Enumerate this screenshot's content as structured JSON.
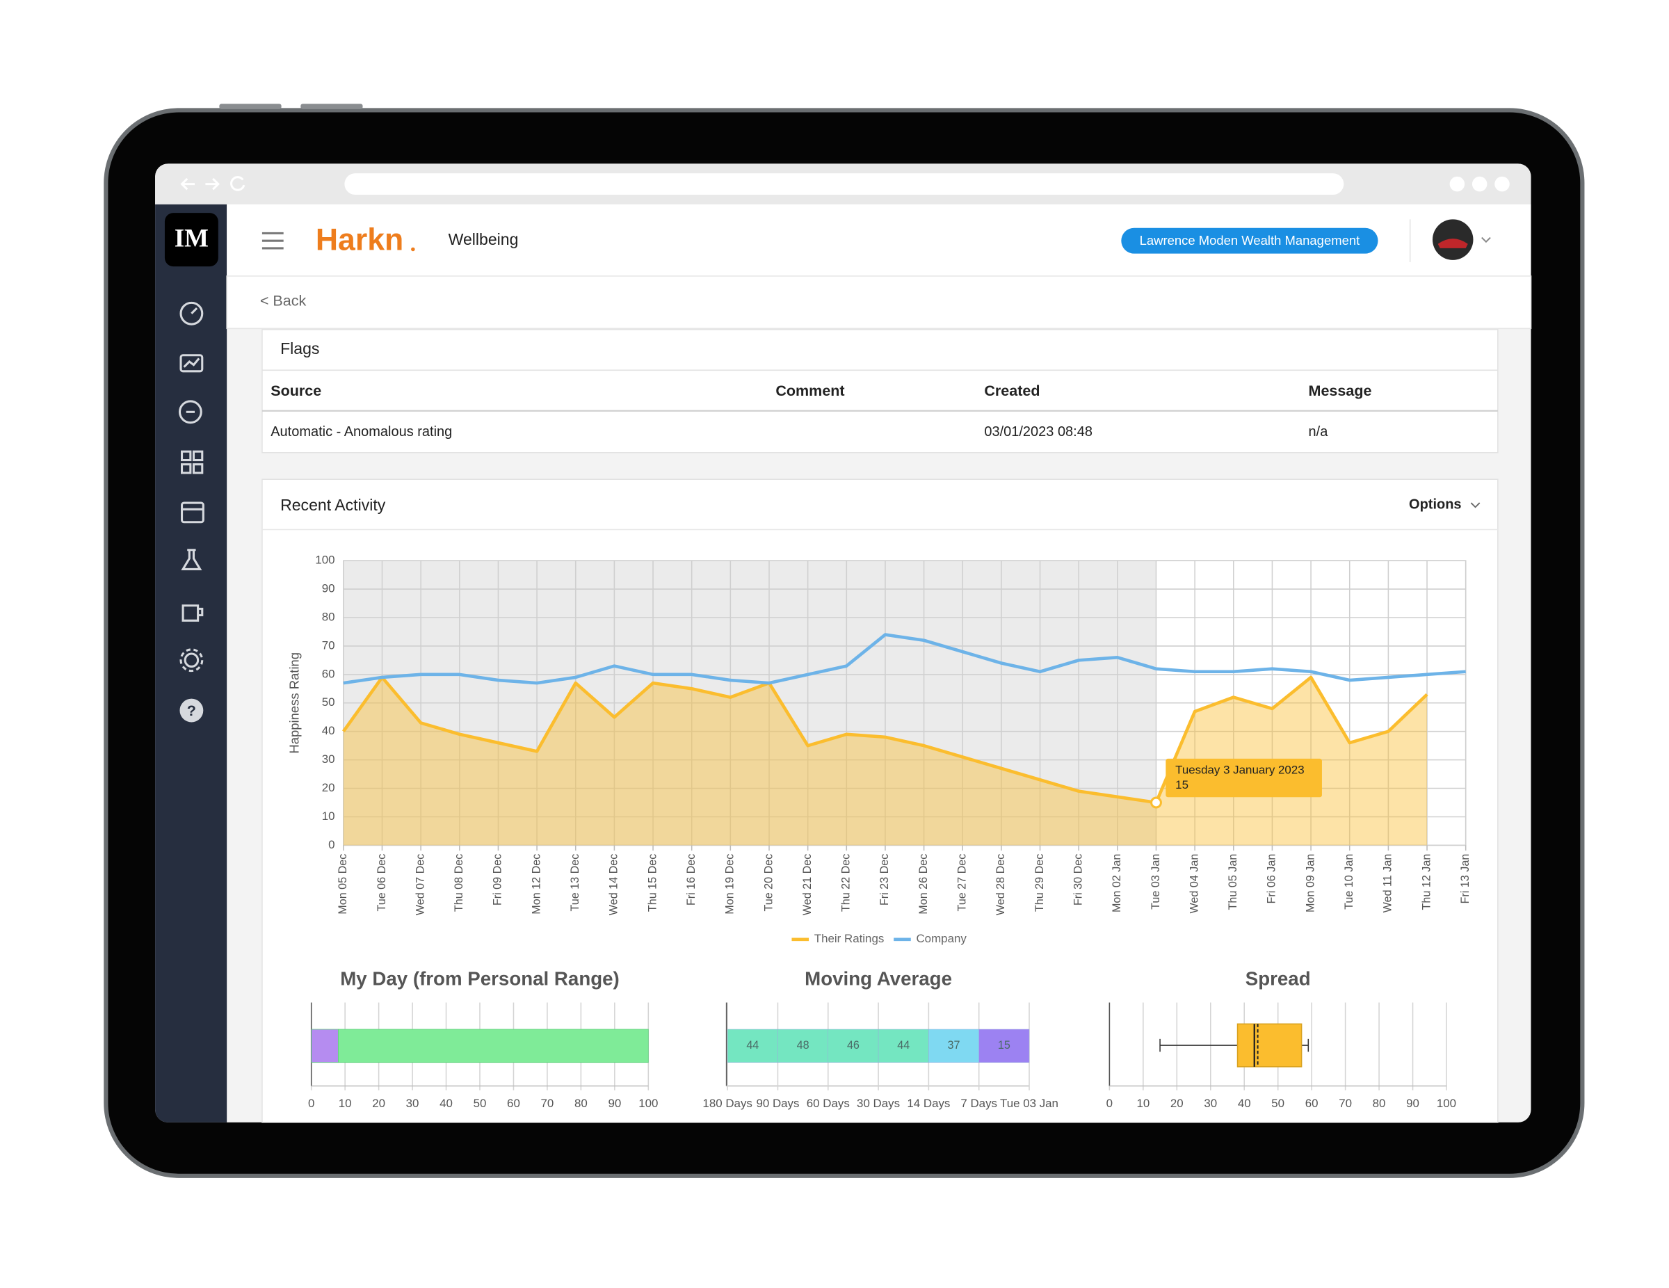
{
  "sidebar": {
    "logo": "IM"
  },
  "header": {
    "brand": "Harkn",
    "page": "Wellbeing",
    "organisation": "Lawrence Moden Wealth Management"
  },
  "back": "< Back",
  "flags": {
    "title": "Flags",
    "columns": [
      "Source",
      "Comment",
      "Created",
      "Message"
    ],
    "rows": [
      {
        "source": "Automatic - Anomalous rating",
        "created": "03/01/2023 08:48",
        "message": "n/a"
      }
    ]
  },
  "recent_activity": {
    "title": "Recent Activity",
    "options": "Options"
  },
  "chart_data": [
    {
      "type": "line",
      "ylabel": "Happiness Rating",
      "categories": [
        "Mon 05 Dec",
        "Tue 06 Dec",
        "Wed 07 Dec",
        "Thu 08 Dec",
        "Fri 09 Dec",
        "Mon 12 Dec",
        "Tue 13 Dec",
        "Wed 14 Dec",
        "Thu 15 Dec",
        "Fri 16 Dec",
        "Mon 19 Dec",
        "Tue 20 Dec",
        "Wed 21 Dec",
        "Thu 22 Dec",
        "Fri 23 Dec",
        "Mon 26 Dec",
        "Tue 27 Dec",
        "Wed 28 Dec",
        "Thu 29 Dec",
        "Fri 30 Dec",
        "Mon 02 Jan",
        "Tue 03 Jan",
        "Wed 04 Jan",
        "Thu 05 Jan",
        "Fri 06 Jan",
        "Mon 09 Jan",
        "Tue 10 Jan",
        "Wed 11 Jan",
        "Thu 12 Jan",
        "Fri 13 Jan"
      ],
      "series": [
        {
          "name": "Their Ratings",
          "color": "#fbbd2e",
          "fill": true,
          "values": [
            40,
            59,
            43,
            39,
            36,
            33,
            57,
            45,
            57,
            55,
            52,
            57,
            35,
            39,
            38,
            35,
            31,
            27,
            23,
            19,
            17,
            15,
            47,
            52,
            48,
            59,
            36,
            40,
            53,
            null
          ]
        },
        {
          "name": "Company",
          "color": "#6db3e8",
          "fill": false,
          "values": [
            57,
            59,
            60,
            60,
            58,
            57,
            59,
            63,
            60,
            60,
            58,
            57,
            60,
            63,
            74,
            72,
            68,
            64,
            61,
            65,
            66,
            62,
            61,
            61,
            62,
            61,
            58,
            59,
            60,
            61
          ]
        }
      ],
      "ylim": [
        0,
        100
      ],
      "yticks": [
        0,
        10,
        20,
        30,
        40,
        50,
        60,
        70,
        80,
        90,
        100
      ],
      "grid": true,
      "legend": "bottom",
      "shaded_until": "Tue 03 Jan",
      "tooltip": {
        "title": "Tuesday 3 January 2023",
        "category": "Tue 03 Jan",
        "series": "Their Ratings"
      }
    },
    {
      "type": "stacked_bar",
      "title": "My Day (from Personal Range)",
      "values": [
        8,
        92
      ],
      "colors": [
        "#b58cf0",
        "#7feb98"
      ],
      "xlim": [
        0,
        100
      ],
      "xticks": [
        0,
        10,
        20,
        30,
        40,
        50,
        60,
        70,
        80,
        90,
        100
      ],
      "grid": true
    },
    {
      "type": "strip",
      "title": "Moving Average",
      "boundaries": [
        "180 Days",
        "90 Days",
        "60 Days",
        "30 Days",
        "14 Days",
        "7 Days",
        "Tue 03 Jan"
      ],
      "values": [
        44,
        48,
        46,
        44,
        37,
        15
      ],
      "colors": [
        "#74e6c1",
        "#74e6c1",
        "#74e6c1",
        "#74e6c1",
        "#7fd9f2",
        "#9c82f2"
      ]
    },
    {
      "type": "box",
      "title": "Spread",
      "min": 15,
      "q1": 38,
      "median": 43,
      "mean": 44,
      "q3": 57,
      "max": 59,
      "color": "#fbbd2e",
      "xlim": [
        0,
        100
      ],
      "xticks": [
        0,
        10,
        20,
        30,
        40,
        50,
        60,
        70,
        80,
        90,
        100
      ],
      "grid": true
    }
  ]
}
